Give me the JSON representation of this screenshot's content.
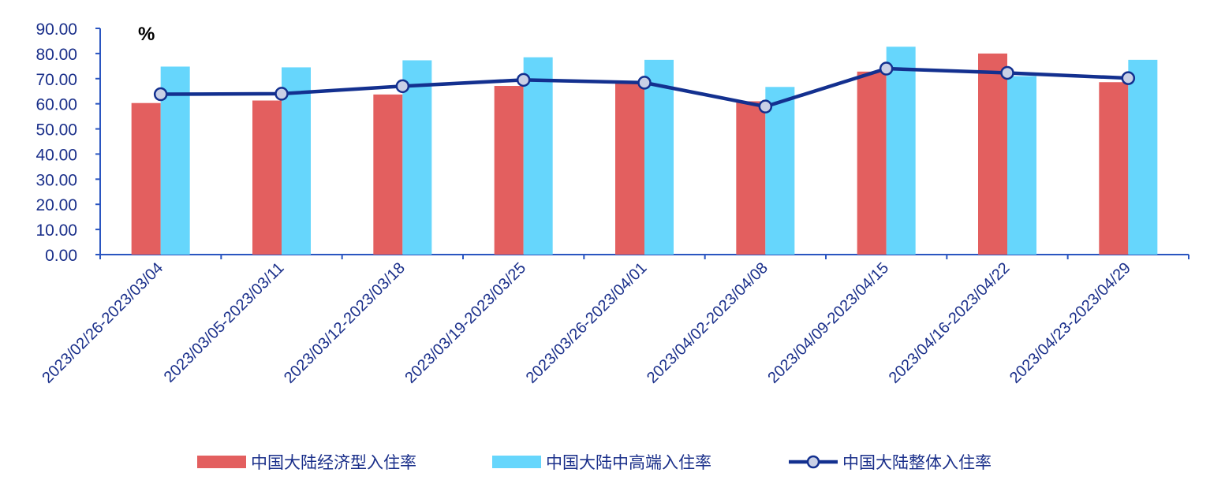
{
  "chart_data": {
    "type": "bar",
    "unit": "%",
    "ylim": [
      0,
      90
    ],
    "ytick_step": 10,
    "yticks": [
      "0.00",
      "10.00",
      "20.00",
      "30.00",
      "40.00",
      "50.00",
      "60.00",
      "70.00",
      "80.00",
      "90.00"
    ],
    "categories": [
      "2023/02/26-2023/03/04",
      "2023/03/05-2023/03/11",
      "2023/03/12-2023/03/18",
      "2023/03/19-2023/03/25",
      "2023/03/26-2023/04/01",
      "2023/04/02-2023/04/08",
      "2023/04/09-2023/04/15",
      "2023/04/16-2023/04/22",
      "2023/04/23-2023/04/29"
    ],
    "series": [
      {
        "name": "中国大陆经济型入住率",
        "kind": "bar",
        "color": "#e35f5f",
        "values": [
          60.3,
          61.3,
          63.7,
          67.1,
          68.2,
          61.0,
          72.8,
          80.0,
          68.6
        ]
      },
      {
        "name": "中国大陆中高端入住率",
        "kind": "bar",
        "color": "#66d6fc",
        "values": [
          74.8,
          74.5,
          77.3,
          78.5,
          77.5,
          66.7,
          82.7,
          71.0,
          77.5
        ]
      },
      {
        "name": "中国大陆整体入住率",
        "kind": "line",
        "color": "#13308f",
        "values": [
          63.8,
          64.0,
          67.0,
          69.5,
          68.4,
          58.9,
          74.0,
          72.3,
          70.2
        ]
      }
    ],
    "grid": false,
    "legend_position": "bottom"
  }
}
